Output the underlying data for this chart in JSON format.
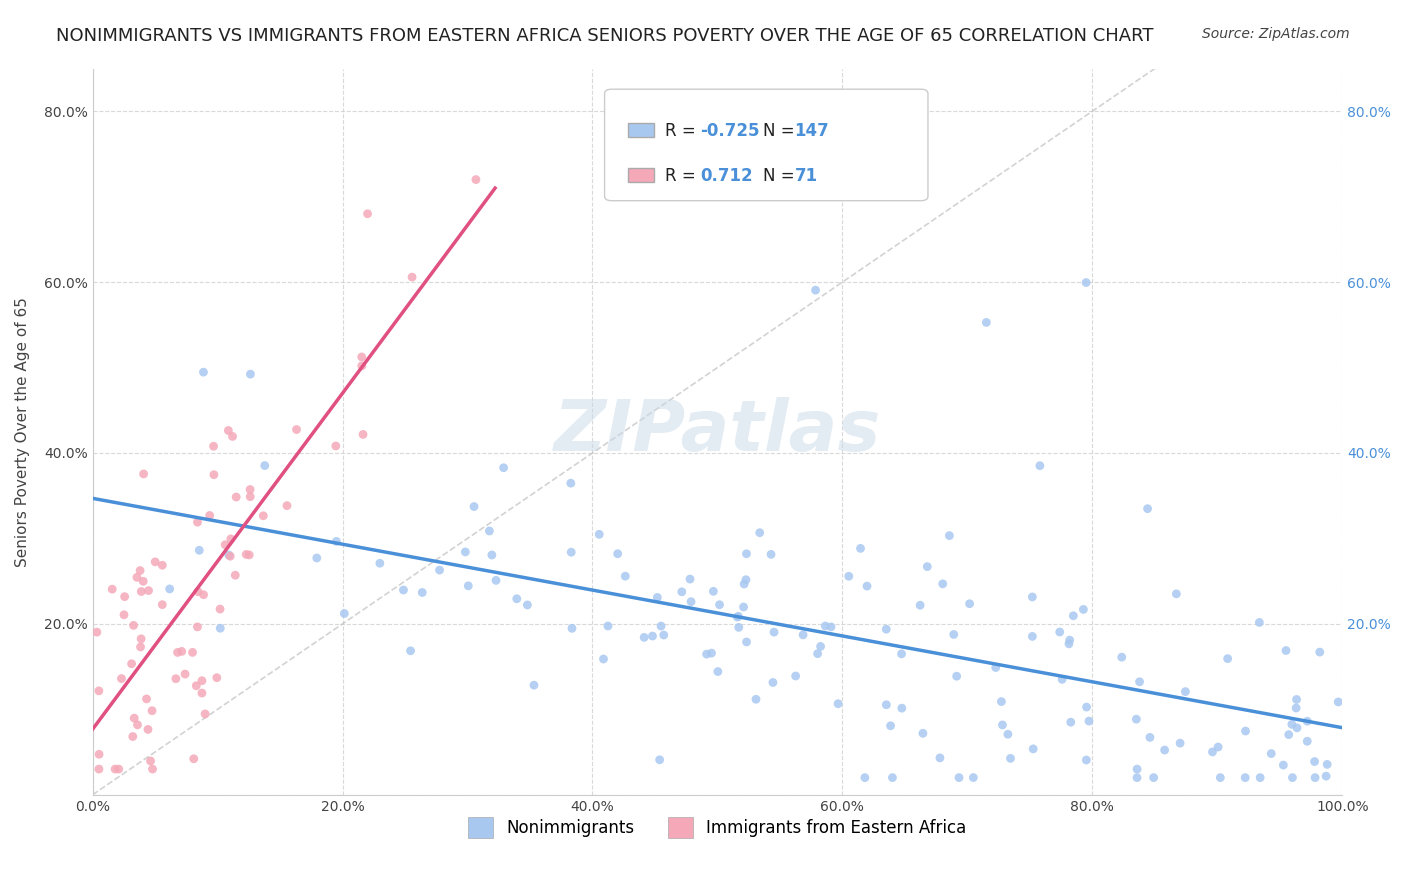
{
  "title": "NONIMMIGRANTS VS IMMIGRANTS FROM EASTERN AFRICA SENIORS POVERTY OVER THE AGE OF 65 CORRELATION CHART",
  "source": "Source: ZipAtlas.com",
  "ylabel": "Seniors Poverty Over the Age of 65",
  "xlabel": "",
  "xlim": [
    0.0,
    1.0
  ],
  "ylim": [
    0.0,
    0.85
  ],
  "nonimmigrant_color": "#a8c8f0",
  "immigrant_color": "#f4a8b8",
  "nonimmigrant_line_color": "#4a90d9",
  "immigrant_line_color": "#e05080",
  "diagonal_color": "#c0c0c0",
  "R_nonimmigrant": -0.725,
  "N_nonimmigrant": 147,
  "R_immigrant": 0.712,
  "N_immigrant": 71,
  "legend_nonimmigrant": "Nonimmigrants",
  "legend_immigrant": "Immigrants from Eastern Africa",
  "watermark": "ZIPatlas",
  "background_color": "#ffffff",
  "grid_color": "#d0d0d0",
  "title_fontsize": 13,
  "axis_label_fontsize": 11,
  "tick_label_fontsize": 10,
  "legend_fontsize": 12,
  "watermark_color": "#c8d8e8",
  "source_fontsize": 10
}
